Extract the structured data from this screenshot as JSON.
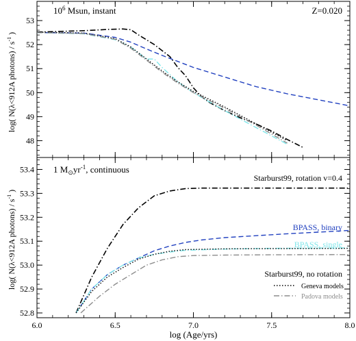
{
  "colors": {
    "starburst": "#000000",
    "bpass_binary": "#1f3fbf",
    "bpass_single": "#7fe6ea",
    "geneva": "#000000",
    "padova": "#8c8c8c"
  },
  "shared": {
    "xlabel": "log (Age/yrs)",
    "xlim": [
      6.0,
      8.0
    ],
    "xticks": [
      "6.0",
      "6.5",
      "7.0",
      "7.5",
      "8.0"
    ]
  },
  "chart_data": [
    {
      "type": "line",
      "panel": "top",
      "label_left": "10",
      "label_left_sup": "6",
      "label_left_rest": " Msun, instant",
      "label_right": "Z=0.020",
      "ylabel": "log( N(λ<912A photons) / s",
      "ylabel_sup": "-1",
      "ylabel_end": " )",
      "ylim": [
        47.3,
        53.8
      ],
      "yticks": [
        "48",
        "49",
        "50",
        "51",
        "52",
        "53"
      ],
      "series": [
        {
          "key": "starburst_rot",
          "style": "dashdot",
          "x": [
            6.0,
            6.3,
            6.45,
            6.55,
            6.6,
            6.65,
            6.75,
            6.85,
            6.9,
            6.95,
            7.0,
            7.05,
            7.1,
            7.2,
            7.3,
            7.4,
            7.5,
            7.6,
            7.7
          ],
          "y": [
            52.52,
            52.58,
            52.63,
            52.65,
            52.62,
            52.4,
            52.0,
            51.5,
            51.05,
            50.7,
            50.2,
            49.85,
            49.6,
            49.25,
            48.95,
            48.7,
            48.4,
            48.05,
            47.72
          ]
        },
        {
          "key": "bpass_binary",
          "style": "dashed",
          "x": [
            6.0,
            6.3,
            6.5,
            6.6,
            6.7,
            6.8,
            6.9,
            7.0,
            7.2,
            7.4,
            7.6,
            7.8,
            8.0
          ],
          "y": [
            52.5,
            52.48,
            52.3,
            52.1,
            51.82,
            51.55,
            51.3,
            51.05,
            50.65,
            50.25,
            49.95,
            49.7,
            49.45
          ]
        },
        {
          "key": "bpass_single",
          "style": "dashdot",
          "x": [
            6.0,
            6.3,
            6.5,
            6.6,
            6.7,
            6.75,
            6.8,
            6.9,
            7.0,
            7.2,
            7.4,
            7.6
          ],
          "y": [
            52.5,
            52.45,
            52.2,
            51.9,
            51.4,
            51.4,
            51.05,
            50.45,
            50.0,
            49.25,
            48.55,
            47.85
          ]
        },
        {
          "key": "geneva",
          "style": "dotted",
          "x": [
            6.0,
            6.3,
            6.5,
            6.6,
            6.7,
            6.8,
            6.9,
            7.0,
            7.2,
            7.4,
            7.6
          ],
          "y": [
            52.52,
            52.48,
            52.25,
            51.9,
            51.4,
            50.9,
            50.45,
            50.05,
            49.4,
            48.7,
            48.0
          ]
        },
        {
          "key": "padova",
          "style": "dashdot",
          "x": [
            6.0,
            6.3,
            6.5,
            6.6,
            6.7,
            6.8,
            6.9,
            7.0,
            7.2,
            7.4,
            7.6
          ],
          "y": [
            52.5,
            52.46,
            52.22,
            51.85,
            51.35,
            50.85,
            50.4,
            50.0,
            49.35,
            48.65,
            47.9
          ]
        }
      ]
    },
    {
      "type": "line",
      "panel": "bottom",
      "label_left_a": "1 M",
      "label_left_sun": "⊙",
      "label_left_b": "yr",
      "label_left_sup": "-1",
      "label_left_c": ", continuous",
      "ylabel": "log( N(λ<912A photons) / s",
      "ylabel_sup": "-1",
      "ylabel_end": " )",
      "ylim": [
        52.78,
        53.45
      ],
      "yticks": [
        "52.8",
        "52.9",
        "53.0",
        "53.1",
        "53.2",
        "53.3",
        "53.4"
      ],
      "annotations": {
        "starburst_rot": "Starburst99, rotation v=0.4",
        "bpass_binary": "BPASS, binary",
        "bpass_single": "BPASS, single",
        "no_rotation": "Starburst99, no rotation",
        "geneva": "Geneva models",
        "padova": "Padova models"
      },
      "series": [
        {
          "key": "starburst_rot",
          "style": "dashdot",
          "x": [
            6.25,
            6.35,
            6.45,
            6.55,
            6.65,
            6.75,
            6.85,
            6.95,
            7.05,
            7.2,
            7.5,
            8.0
          ],
          "y": [
            52.8,
            52.95,
            53.07,
            53.17,
            53.24,
            53.29,
            53.31,
            53.32,
            53.322,
            53.322,
            53.322,
            53.322
          ]
        },
        {
          "key": "bpass_binary",
          "style": "dashed",
          "x": [
            6.25,
            6.35,
            6.45,
            6.55,
            6.65,
            6.75,
            6.85,
            6.95,
            7.05,
            7.2,
            7.4,
            7.6,
            7.8,
            8.0
          ],
          "y": [
            52.8,
            52.9,
            52.96,
            53.0,
            53.03,
            53.06,
            53.08,
            53.095,
            53.105,
            53.115,
            53.123,
            53.131,
            53.138,
            53.145
          ]
        },
        {
          "key": "bpass_single",
          "style": "dashdot",
          "x": [
            6.25,
            6.35,
            6.45,
            6.55,
            6.65,
            6.75,
            6.85,
            6.95,
            7.2,
            7.5,
            8.0
          ],
          "y": [
            52.8,
            52.9,
            52.96,
            53.0,
            53.03,
            53.045,
            53.055,
            53.062,
            53.067,
            53.07,
            53.072
          ]
        },
        {
          "key": "geneva",
          "style": "dotted",
          "x": [
            6.25,
            6.35,
            6.45,
            6.55,
            6.65,
            6.75,
            6.85,
            6.95,
            7.2,
            7.5,
            8.0
          ],
          "y": [
            52.8,
            52.89,
            52.95,
            52.99,
            53.025,
            53.045,
            53.058,
            53.065,
            53.068,
            53.069,
            53.07
          ]
        },
        {
          "key": "padova",
          "style": "dashdot",
          "x": [
            6.28,
            6.4,
            6.5,
            6.6,
            6.7,
            6.8,
            6.9,
            7.0,
            7.2,
            7.5,
            8.0
          ],
          "y": [
            52.8,
            52.87,
            52.92,
            52.96,
            53.0,
            53.022,
            53.035,
            53.04,
            53.042,
            53.043,
            53.044
          ]
        }
      ]
    }
  ]
}
